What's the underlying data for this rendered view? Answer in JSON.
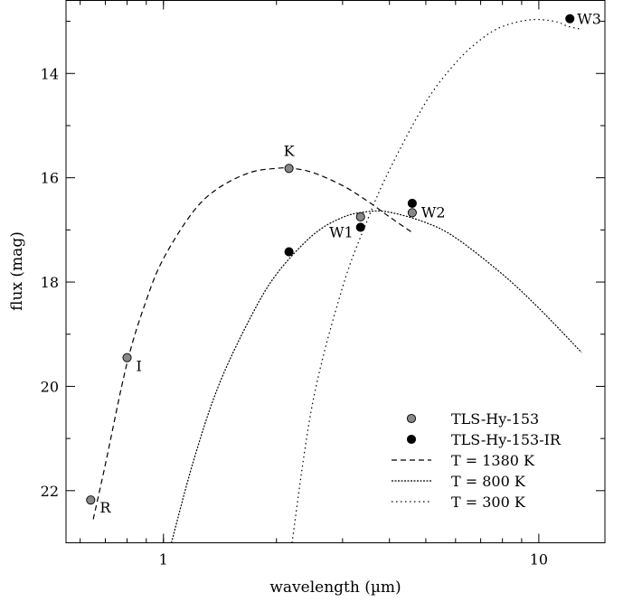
{
  "chart_data": {
    "type": "scatter",
    "title": "",
    "xlabel": "wavelength (µm)",
    "ylabel": "flux (mag)",
    "x_scale": "log",
    "y_inverted": true,
    "xlim": [
      0.55,
      15
    ],
    "ylim": [
      23.0,
      12.6
    ],
    "x_ticks": [
      {
        "value": 1,
        "label": "1"
      },
      {
        "value": 10,
        "label": "10"
      }
    ],
    "y_ticks": [
      {
        "value": 14,
        "label": "14"
      },
      {
        "value": 16,
        "label": "16"
      },
      {
        "value": 18,
        "label": "18"
      },
      {
        "value": 20,
        "label": "20"
      },
      {
        "value": 22,
        "label": "22"
      }
    ],
    "grid": false,
    "legend_position": "bottom-right",
    "series": [
      {
        "name": "TLS-Hy-153",
        "kind": "points",
        "color": "#888888",
        "points": [
          {
            "x": 0.64,
            "y": 22.18,
            "label": "R"
          },
          {
            "x": 0.8,
            "y": 19.45,
            "label": "I"
          },
          {
            "x": 2.16,
            "y": 15.82,
            "label": "K"
          },
          {
            "x": 3.35,
            "y": 16.75,
            "label": ""
          },
          {
            "x": 4.6,
            "y": 16.67,
            "label": "W2"
          }
        ]
      },
      {
        "name": "TLS-Hy-153-IR",
        "kind": "points",
        "color": "#000000",
        "points": [
          {
            "x": 2.16,
            "y": 17.42,
            "label": ""
          },
          {
            "x": 3.35,
            "y": 16.95,
            "label": "W1"
          },
          {
            "x": 4.6,
            "y": 16.49,
            "label": ""
          },
          {
            "x": 12.1,
            "y": 12.95,
            "label": "W3"
          }
        ]
      },
      {
        "name": "T = 1380 K",
        "kind": "curve",
        "dash": "6,4",
        "x": [
          0.65,
          0.7,
          0.8,
          0.9,
          1.0,
          1.2,
          1.4,
          1.7,
          2.0,
          2.2,
          2.5,
          3.0,
          3.5,
          4.0,
          4.6
        ],
        "y": [
          22.55,
          21.5,
          19.55,
          18.35,
          17.55,
          16.65,
          16.2,
          15.9,
          15.82,
          15.82,
          15.9,
          16.15,
          16.45,
          16.75,
          17.05
        ]
      },
      {
        "name": "T = 800 K",
        "kind": "curve",
        "dash": "2,1.5",
        "x": [
          1.05,
          1.2,
          1.4,
          1.7,
          2.0,
          2.5,
          3.0,
          3.5,
          4.0,
          5.0,
          6.0,
          8.0,
          10.0,
          13.0
        ],
        "y": [
          23.0,
          21.45,
          20.0,
          18.7,
          17.85,
          17.1,
          16.76,
          16.65,
          16.66,
          16.86,
          17.15,
          17.85,
          18.5,
          19.35
        ]
      },
      {
        "name": "T = 300 K",
        "kind": "curve",
        "dash": "1.5,3.5",
        "x": [
          2.2,
          2.5,
          3.0,
          3.5,
          4.0,
          5.0,
          6.0,
          7.0,
          8.0,
          9.5,
          11.0,
          12.0,
          13.0
        ],
        "y": [
          23.0,
          20.3,
          18.1,
          16.8,
          15.85,
          14.55,
          13.8,
          13.35,
          13.1,
          12.97,
          13.0,
          13.1,
          13.15
        ]
      }
    ]
  }
}
